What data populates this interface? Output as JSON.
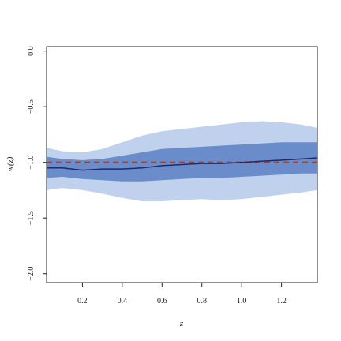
{
  "chart_data": {
    "type": "area",
    "xlabel": "z",
    "ylabel": "w(z)",
    "xlim": [
      0.02,
      1.38
    ],
    "ylim": [
      -2.08,
      0.04
    ],
    "x_ticks": [
      0.2,
      0.4,
      0.6,
      0.8,
      1.0,
      1.2
    ],
    "x_tick_labels": [
      "0.2",
      "0.4",
      "0.6",
      "0.8",
      "1.0",
      "1.2"
    ],
    "y_ticks": [
      0.0,
      -0.5,
      -1.0,
      -1.5,
      -2.0
    ],
    "y_tick_labels": [
      "0.0",
      "−0.5",
      "−1.0",
      "−1.5",
      "−2.0"
    ],
    "grid": false,
    "x": [
      0.02,
      0.1,
      0.2,
      0.3,
      0.4,
      0.5,
      0.6,
      0.7,
      0.8,
      0.9,
      1.0,
      1.1,
      1.2,
      1.3,
      1.38
    ],
    "series": [
      {
        "role": "outer_band",
        "color": "#bfd1ec",
        "upper": [
          -0.87,
          -0.9,
          -0.91,
          -0.88,
          -0.82,
          -0.76,
          -0.72,
          -0.7,
          -0.68,
          -0.66,
          -0.64,
          -0.63,
          -0.64,
          -0.66,
          -0.69
        ],
        "lower": [
          -1.25,
          -1.23,
          -1.25,
          -1.28,
          -1.32,
          -1.35,
          -1.35,
          -1.34,
          -1.33,
          -1.34,
          -1.33,
          -1.31,
          -1.29,
          -1.27,
          -1.25
        ]
      },
      {
        "role": "inner_band",
        "color": "#6a8ccb",
        "upper": [
          -0.95,
          -0.97,
          -0.98,
          -0.97,
          -0.94,
          -0.91,
          -0.88,
          -0.87,
          -0.86,
          -0.85,
          -0.84,
          -0.83,
          -0.82,
          -0.82,
          -0.82
        ],
        "lower": [
          -1.14,
          -1.13,
          -1.15,
          -1.16,
          -1.17,
          -1.17,
          -1.16,
          -1.15,
          -1.14,
          -1.14,
          -1.13,
          -1.12,
          -1.11,
          -1.1,
          -1.1
        ]
      },
      {
        "role": "median",
        "style": "solid",
        "color": "#1f2a6b",
        "values": [
          -1.05,
          -1.05,
          -1.07,
          -1.06,
          -1.06,
          -1.05,
          -1.03,
          -1.02,
          -1.01,
          -1.01,
          -1.0,
          -0.99,
          -0.98,
          -0.97,
          -0.96
        ]
      },
      {
        "role": "reference",
        "style": "dashed",
        "color": "#b0401a",
        "values": [
          -1.0,
          -1.0,
          -1.0,
          -1.0,
          -1.0,
          -1.0,
          -1.0,
          -1.0,
          -1.0,
          -1.0,
          -1.0,
          -1.0,
          -1.0,
          -1.0,
          -1.0
        ]
      }
    ]
  }
}
